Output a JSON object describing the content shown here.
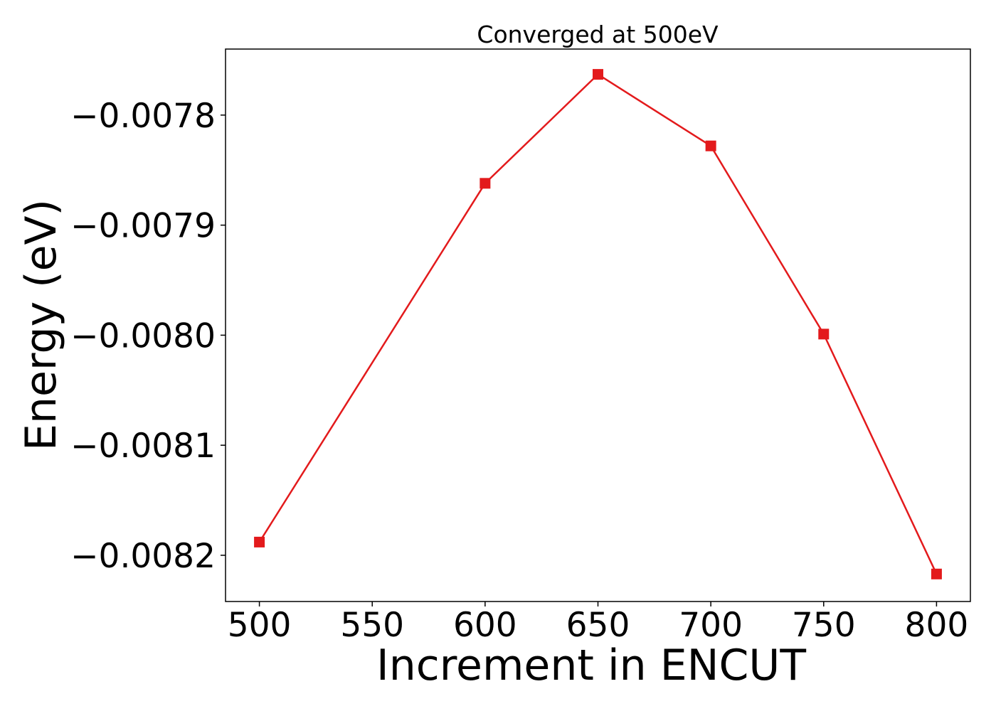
{
  "chart_data": {
    "type": "line",
    "title": "Converged at 500eV",
    "xlabel": "Increment in ENCUT",
    "ylabel": "Energy (eV)",
    "x": [
      500,
      600,
      650,
      700,
      750,
      800
    ],
    "series": [
      {
        "values": [
          -0.008188,
          -0.007862,
          -0.007763,
          -0.007828,
          -0.007999,
          -0.008217
        ],
        "color": "#e31a1c",
        "marker": "square"
      }
    ],
    "xticks": [
      500,
      550,
      600,
      650,
      700,
      750,
      800
    ],
    "xtick_labels": [
      "500",
      "550",
      "600",
      "650",
      "700",
      "750",
      "800"
    ],
    "yticks": [
      -0.0078,
      -0.0079,
      -0.008,
      -0.0081,
      -0.0082
    ],
    "ytick_labels": [
      "−0.0078",
      "−0.0079",
      "−0.0080",
      "−0.0081",
      "−0.0082"
    ],
    "xlim": [
      485,
      815
    ],
    "ylim": [
      -0.008242,
      -0.00774
    ],
    "grid": false,
    "legend": false
  }
}
